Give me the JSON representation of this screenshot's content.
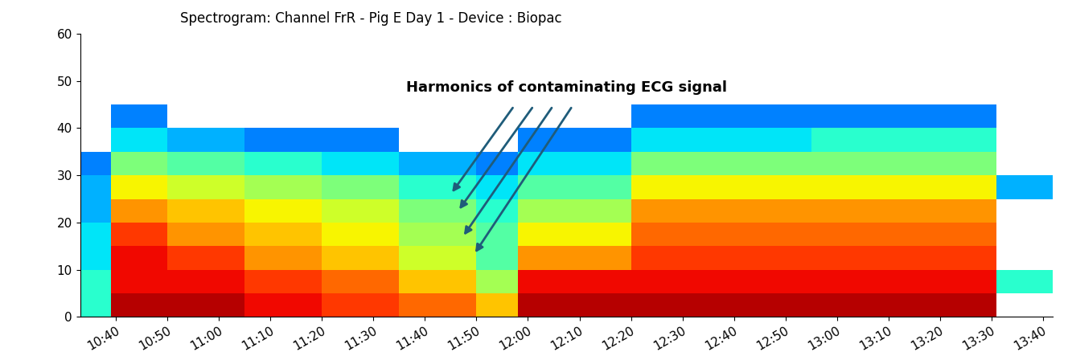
{
  "chart_data": {
    "type": "heatmap",
    "title": "Spectrogram: Channel FrR - Pig E Day 1 - Device : Biopac",
    "x_edges": [
      633,
      639,
      650,
      665,
      680,
      695,
      710,
      718,
      740,
      775,
      811,
      822
    ],
    "y_edges": [
      0,
      5,
      10,
      15,
      20,
      25,
      30,
      35,
      40,
      45,
      50,
      55,
      60
    ],
    "cells": [
      [
        4,
        9.5,
        9.5,
        9,
        8.5,
        8,
        7,
        9.5,
        9.5,
        9.5,
        null
      ],
      [
        4,
        9,
        9,
        8.5,
        8,
        7,
        5.5,
        9,
        9,
        9,
        4
      ],
      [
        3.5,
        9,
        8.5,
        7.5,
        7,
        6,
        4.5,
        7.5,
        8.5,
        8.5,
        null
      ],
      [
        3.5,
        8.5,
        7.5,
        7,
        6.5,
        5.5,
        4.5,
        6.5,
        8,
        8,
        null
      ],
      [
        3,
        7.5,
        7,
        6.5,
        6,
        5,
        4,
        5.5,
        7.5,
        7.5,
        null
      ],
      [
        3,
        6.5,
        6,
        5.5,
        5,
        4,
        3.5,
        4.5,
        6.5,
        6.5,
        3
      ],
      [
        2.5,
        5,
        4.5,
        4,
        3.5,
        3,
        2.5,
        3.5,
        5,
        5,
        null
      ],
      [
        null,
        3.5,
        3,
        2.5,
        2.5,
        null,
        null,
        2.5,
        3.5,
        4,
        null
      ],
      [
        null,
        2.5,
        null,
        null,
        null,
        null,
        null,
        null,
        2.5,
        2.5,
        null
      ],
      [
        null,
        null,
        null,
        null,
        null,
        null,
        null,
        null,
        null,
        null,
        null
      ],
      [
        null,
        null,
        null,
        null,
        null,
        null,
        null,
        null,
        null,
        null,
        null
      ],
      [
        null,
        null,
        null,
        null,
        null,
        null,
        null,
        null,
        null,
        null,
        null
      ]
    ],
    "clim": [
      0,
      10
    ],
    "xlim": [
      633,
      822
    ],
    "xticks": [
      {
        "value": 640,
        "label": "10:40"
      },
      {
        "value": 650,
        "label": "10:50"
      },
      {
        "value": 660,
        "label": "11:00"
      },
      {
        "value": 670,
        "label": "11:10"
      },
      {
        "value": 680,
        "label": "11:20"
      },
      {
        "value": 690,
        "label": "11:30"
      },
      {
        "value": 700,
        "label": "11:40"
      },
      {
        "value": 710,
        "label": "11:50"
      },
      {
        "value": 720,
        "label": "12:00"
      },
      {
        "value": 730,
        "label": "12:10"
      },
      {
        "value": 740,
        "label": "12:20"
      },
      {
        "value": 750,
        "label": "12:30"
      },
      {
        "value": 760,
        "label": "12:40"
      },
      {
        "value": 770,
        "label": "12:50"
      },
      {
        "value": 780,
        "label": "13:00"
      },
      {
        "value": 790,
        "label": "13:10"
      },
      {
        "value": 800,
        "label": "13:20"
      },
      {
        "value": 810,
        "label": "13:30"
      },
      {
        "value": 820,
        "label": "13:40"
      }
    ],
    "ylim": [
      0,
      60
    ],
    "yticks": [
      0,
      10,
      20,
      30,
      40,
      50,
      60
    ],
    "grid": false,
    "annotation": {
      "text": "Harmonics of contaminating ECG signal",
      "targets": [
        {
          "x": 705,
          "y": 26
        },
        {
          "x": 706.4,
          "y": 22.4
        },
        {
          "x": 707.3,
          "y": 16.9
        },
        {
          "x": 709.5,
          "y": 13.2
        }
      ]
    }
  }
}
